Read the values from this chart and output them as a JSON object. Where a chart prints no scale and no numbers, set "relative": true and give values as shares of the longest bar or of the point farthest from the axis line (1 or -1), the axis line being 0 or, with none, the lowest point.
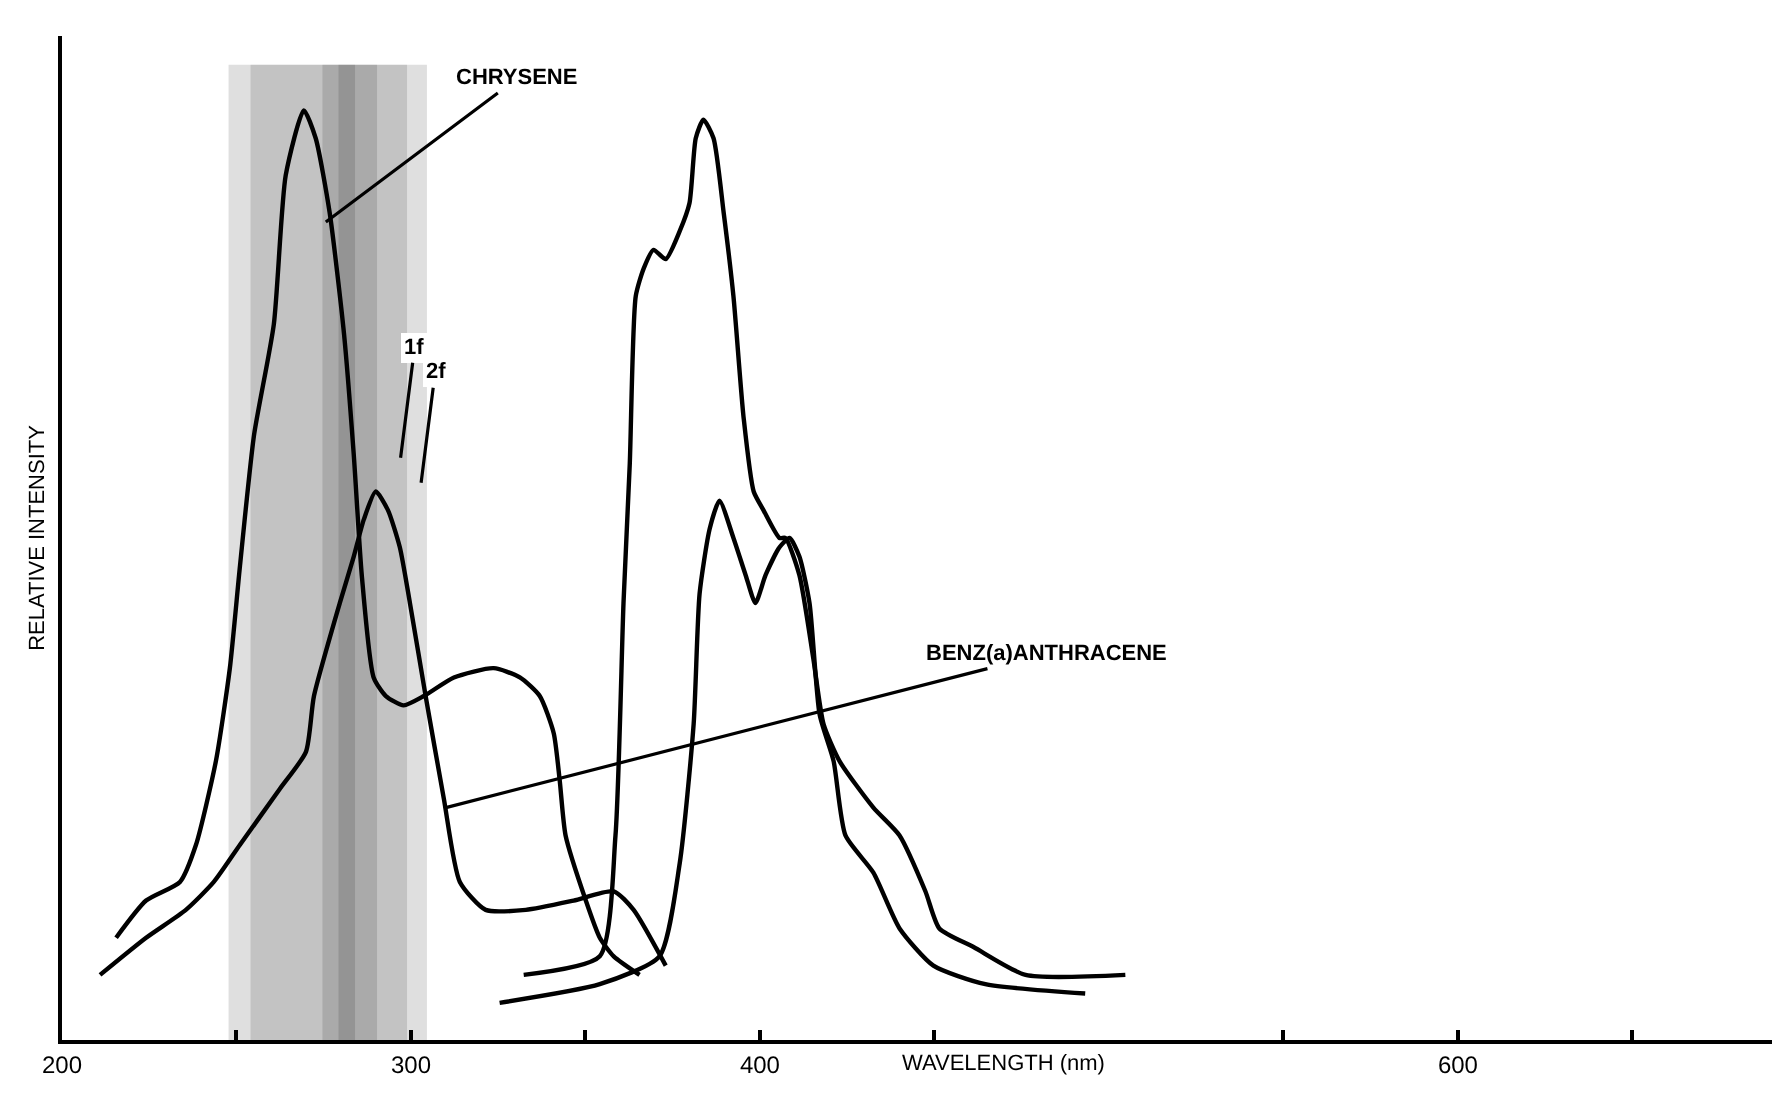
{
  "chart_data": {
    "type": "line",
    "relative": true,
    "xlabel": "WAVELENGTH (nm)",
    "ylabel": "RELATIVE INTENSITY",
    "xlim": [
      200,
      690
    ],
    "xticks": [
      200,
      {
        "value": 250,
        "label": null
      },
      300,
      {
        "value": 350,
        "label": null
      },
      400,
      {
        "value": 450,
        "label": null
      },
      {
        "value": 550,
        "label": null
      },
      600,
      {
        "value": 650,
        "label": null
      }
    ],
    "grid": false,
    "line_style": "solid",
    "series": [
      {
        "color": "#000000",
        "x": [
          215.5,
          224.1,
          233.8,
          238.4,
          244.1,
          248.1,
          251.0,
          255.0,
          260.7,
          264.1,
          269.3,
          272.7,
          276.7,
          280.8,
          283.6,
          285.9,
          289.3,
          292.8,
          297.9,
          303.7,
          312.3,
          323.7,
          331.2,
          336.9,
          340.9,
          342.6,
          344.3,
          350.1,
          354.1,
          358.1,
          365.5
        ],
        "values": [
          0.11,
          0.15,
          0.17,
          0.21,
          0.3,
          0.4,
          0.51,
          0.65,
          0.77,
          0.93,
          1.0,
          0.97,
          0.89,
          0.76,
          0.63,
          0.5,
          0.39,
          0.37,
          0.36,
          0.37,
          0.39,
          0.4,
          0.39,
          0.37,
          0.33,
          0.28,
          0.22,
          0.15,
          0.11,
          0.09,
          0.07
        ]
      },
      {
        "color": "#000000",
        "x": [
          210.9,
          224.1,
          235.5,
          243.5,
          251.0,
          262.4,
          269.9,
          272.2,
          279.6,
          283.6,
          286.5,
          289.9,
          293.4,
          296.8,
          299.7,
          304.2,
          309.4,
          314.0,
          321.4,
          332.9,
          346.6,
          358.1,
          363.8,
          373.0
        ],
        "values": [
          0.07,
          0.11,
          0.14,
          0.17,
          0.21,
          0.27,
          0.31,
          0.37,
          0.47,
          0.52,
          0.56,
          0.59,
          0.57,
          0.53,
          0.47,
          0.37,
          0.26,
          0.17,
          0.14,
          0.14,
          0.15,
          0.16,
          0.14,
          0.08
        ]
      },
      {
        "color": "#000000",
        "x": [
          332.3,
          354.1,
          358.6,
          360.9,
          362.7,
          364.4,
          366.7,
          369.5,
          373.0,
          377.0,
          379.8,
          381.6,
          383.8,
          386.7,
          389.6,
          392.4,
          395.3,
          398.2,
          401.0,
          405.6,
          407.3,
          411.3,
          415.3,
          418.2,
          422.8,
          432.5,
          440.0,
          447.4,
          451.4,
          461.2,
          476.1,
          504.7
        ],
        "values": [
          0.07,
          0.09,
          0.22,
          0.47,
          0.62,
          0.8,
          0.83,
          0.85,
          0.84,
          0.87,
          0.9,
          0.97,
          0.99,
          0.97,
          0.89,
          0.8,
          0.67,
          0.59,
          0.57,
          0.54,
          0.54,
          0.5,
          0.41,
          0.34,
          0.3,
          0.25,
          0.22,
          0.16,
          0.12,
          0.1,
          0.07,
          0.07
        ]
      },
      {
        "color": "#000000",
        "x": [
          325.4,
          354.1,
          371.2,
          377.0,
          381.0,
          382.7,
          385.6,
          388.4,
          392.4,
          395.9,
          398.7,
          401.6,
          405.6,
          408.5,
          411.3,
          414.2,
          417.1,
          421.1,
          424.5,
          432.5,
          440.0,
          449.7,
          464.6,
          493.2
        ],
        "values": [
          0.04,
          0.06,
          0.09,
          0.19,
          0.34,
          0.48,
          0.55,
          0.58,
          0.54,
          0.5,
          0.47,
          0.5,
          0.53,
          0.54,
          0.52,
          0.47,
          0.35,
          0.3,
          0.22,
          0.18,
          0.12,
          0.08,
          0.06,
          0.05
        ]
      }
    ],
    "bands": [
      {
        "axis": "x",
        "from": 248.1,
        "to": 289.9,
        "color": "#000000"
      },
      {
        "axis": "x",
        "from": 254.4,
        "to": 283.6,
        "color": "#000000"
      },
      {
        "axis": "x",
        "from": 275.0,
        "to": 304.2,
        "color": "#000000"
      },
      {
        "axis": "x",
        "from": 279.6,
        "to": 298.5,
        "color": "#000000"
      }
    ],
    "annotations": [
      {
        "text": "CHRYSENE",
        "x": 275.6,
        "y": 0.88
      },
      "1f",
      "2f",
      {
        "text": "BENZ(a)ANTHRACENE",
        "x": 310.0,
        "y": 0.25
      }
    ]
  }
}
